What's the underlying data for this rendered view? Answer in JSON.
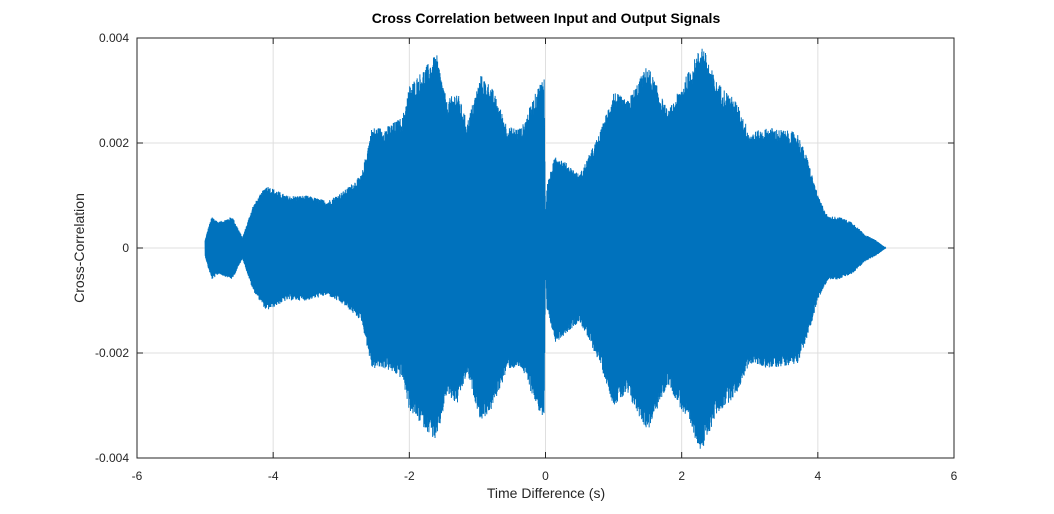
{
  "chart_data": {
    "type": "line",
    "title": "Cross Correlation between Input and Output Signals",
    "xlabel": "Time Difference (s)",
    "ylabel": "Cross-Correlation",
    "xlim": [
      -6,
      6
    ],
    "ylim": [
      -0.004,
      0.004
    ],
    "x_ticks": [
      -6,
      -4,
      -2,
      0,
      2,
      4,
      6
    ],
    "x_tick_labels": [
      "-6",
      "-4",
      "-2",
      "0",
      "2",
      "4",
      "6"
    ],
    "y_ticks": [
      0.004,
      0.002,
      0,
      -0.002,
      -0.004
    ],
    "y_tick_labels": [
      "0.004",
      "0.002",
      "0",
      "-0.002",
      "-0.004"
    ],
    "grid": true,
    "series": [
      {
        "color": "#0072BD",
        "style": "dense oscillation, symmetric envelope",
        "envelope": {
          "x": [
            -5.0,
            -4.95,
            -4.9,
            -4.8,
            -4.6,
            -4.45,
            -4.3,
            -4.1,
            -3.8,
            -3.5,
            -3.2,
            -2.95,
            -2.7,
            -2.55,
            -2.35,
            -2.1,
            -2.0,
            -1.8,
            -1.6,
            -1.45,
            -1.3,
            -1.15,
            -0.95,
            -0.8,
            -0.55,
            -0.35,
            -0.1,
            -0.02,
            0.0,
            0.02,
            0.15,
            0.5,
            0.8,
            1.0,
            1.2,
            1.5,
            1.8,
            2.0,
            2.3,
            2.5,
            2.8,
            3.0,
            3.3,
            3.7,
            3.85,
            4.0,
            4.15,
            4.3,
            4.5,
            4.7,
            4.85,
            4.95,
            5.0
          ],
          "y": [
            0.00015,
            0.0004,
            0.0006,
            0.0005,
            0.0006,
            0.0002,
            0.0008,
            0.0012,
            0.001,
            0.001,
            0.0009,
            0.0011,
            0.0014,
            0.0023,
            0.0023,
            0.0025,
            0.0031,
            0.0034,
            0.0037,
            0.0028,
            0.003,
            0.0024,
            0.0033,
            0.0031,
            0.0023,
            0.0023,
            0.0031,
            0.0033,
            0.0003,
            0.0012,
            0.0018,
            0.0014,
            0.0022,
            0.003,
            0.0028,
            0.0035,
            0.0026,
            0.0031,
            0.0039,
            0.0032,
            0.0028,
            0.0022,
            0.0023,
            0.0022,
            0.0017,
            0.001,
            0.0006,
            0.0006,
            0.0005,
            0.00025,
            0.00015,
            5e-05,
            0.0
          ]
        }
      }
    ]
  }
}
